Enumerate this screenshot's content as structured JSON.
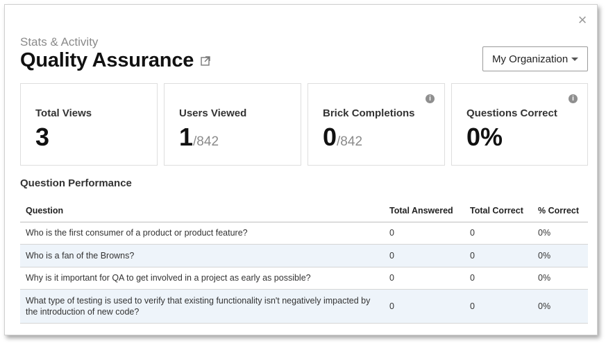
{
  "header": {
    "subtitle": "Stats & Activity",
    "title": "Quality Assurance",
    "org_select": "My Organization"
  },
  "icons": {
    "close": "close-icon",
    "external": "external-link-icon",
    "info": "info-icon",
    "caret": "caret-down-icon"
  },
  "stats": [
    {
      "label": "Total Views",
      "value": "3",
      "denom": "",
      "info": false
    },
    {
      "label": "Users Viewed",
      "value": "1",
      "denom": "/842",
      "info": false
    },
    {
      "label": "Brick Completions",
      "value": "0",
      "denom": "/842",
      "info": true
    },
    {
      "label": "Questions Correct",
      "value": "0%",
      "denom": "",
      "info": true
    }
  ],
  "performance": {
    "title": "Question Performance",
    "columns": [
      "Question",
      "Total Answered",
      "Total Correct",
      "% Correct"
    ],
    "rows": [
      {
        "question": "Who is the first consumer of a product or product feature?",
        "answered": "0",
        "correct": "0",
        "pct": "0%"
      },
      {
        "question": "Who is a fan of the Browns?",
        "answered": "0",
        "correct": "0",
        "pct": "0%"
      },
      {
        "question": "Why is it important for QA to get involved in a project as early as possible?",
        "answered": "0",
        "correct": "0",
        "pct": "0%"
      },
      {
        "question": "What type of testing is used to verify that existing functionality isn't negatively impacted by the introduction of new code?",
        "answered": "0",
        "correct": "0",
        "pct": "0%"
      }
    ]
  }
}
